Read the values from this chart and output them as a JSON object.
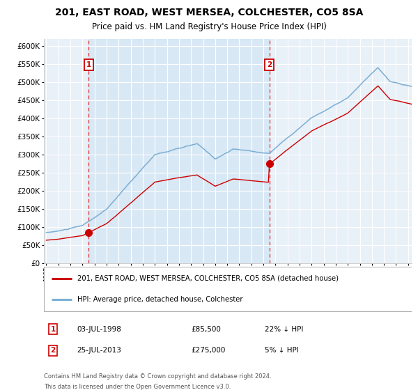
{
  "title1": "201, EAST ROAD, WEST MERSEA, COLCHESTER, CO5 8SA",
  "title2": "Price paid vs. HM Land Registry's House Price Index (HPI)",
  "legend1": "201, EAST ROAD, WEST MERSEA, COLCHESTER, CO5 8SA (detached house)",
  "legend2": "HPI: Average price, detached house, Colchester",
  "footnote1": "Contains HM Land Registry data © Crown copyright and database right 2024.",
  "footnote2": "This data is licensed under the Open Government Licence v3.0.",
  "sale1_date": "03-JUL-1998",
  "sale1_price": 85500,
  "sale1_label": "22% ↓ HPI",
  "sale1_x": 1998.5,
  "sale2_date": "25-JUL-2013",
  "sale2_price": 275000,
  "sale2_label": "5% ↓ HPI",
  "sale2_x": 2013.5,
  "ylim": [
    0,
    620000
  ],
  "xlim_start": 1994.8,
  "xlim_end": 2025.3,
  "plot_bg": "#e8f0f8",
  "grid_color": "#ffffff",
  "red_line_color": "#cc0000",
  "blue_line_color": "#7bafd4",
  "vline_color": "#dd3333",
  "box_color": "#cc0000",
  "shaded_color": "#d0e4f4"
}
